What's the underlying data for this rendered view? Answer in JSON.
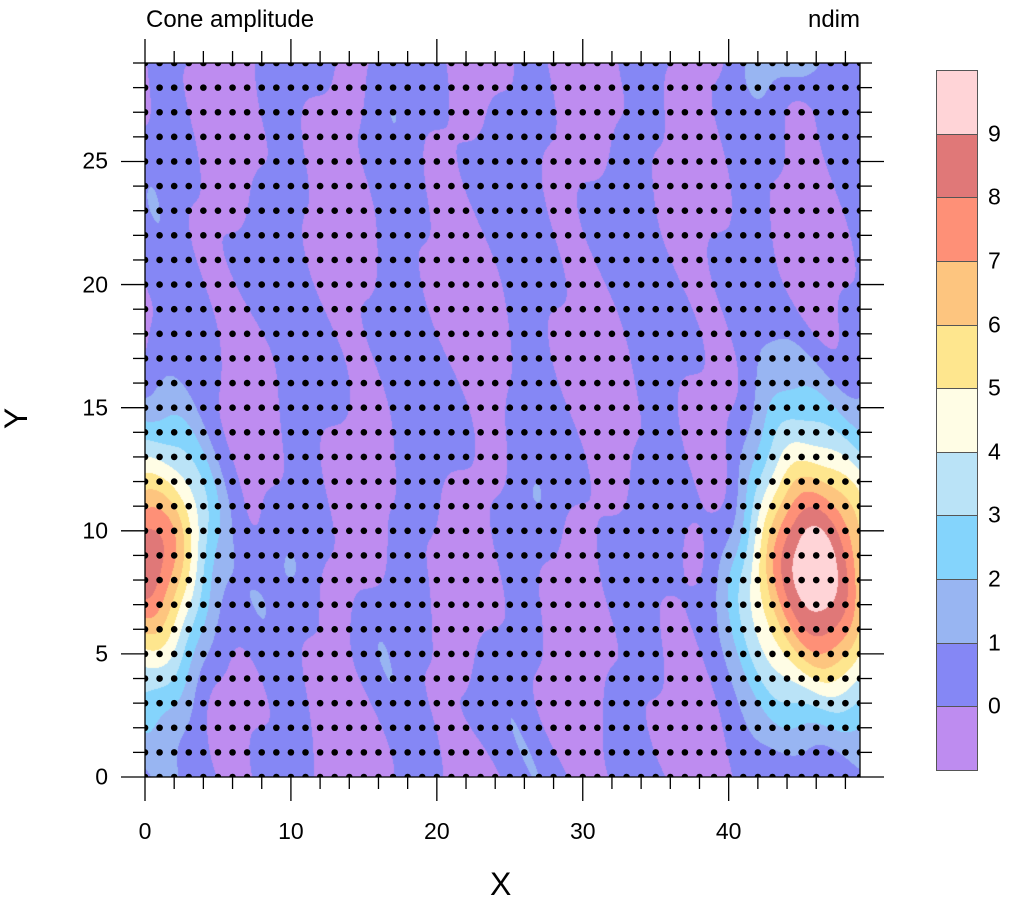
{
  "chart_data": {
    "type": "contour",
    "title_left": "Cone amplitude",
    "title_right": "ndim",
    "xlabel": "X",
    "ylabel": "Y",
    "xlim": [
      0,
      49
    ],
    "ylim": [
      0,
      29
    ],
    "xticks": [
      0,
      10,
      20,
      30,
      40
    ],
    "yticks": [
      0,
      5,
      10,
      15,
      20,
      25
    ],
    "x_minor_step": 2,
    "y_minor_step": 1,
    "grid_points": {
      "nx": 50,
      "ny": 30
    },
    "levels": [
      0,
      1,
      2,
      3,
      4,
      5,
      6,
      7,
      8,
      9
    ],
    "level_labels": [
      "0",
      "1",
      "2",
      "3",
      "4",
      "5",
      "6",
      "7",
      "8",
      "9"
    ],
    "colors": [
      "#BE8CF0",
      "#8587F5",
      "#98B5F2",
      "#84D4FC",
      "#BAE3F7",
      "#FFFDE5",
      "#FEE68E",
      "#FDC57F",
      "#FE9077",
      "#E07878",
      "#FFD4D7"
    ],
    "peaks": [
      {
        "x": 46,
        "y": 8.5,
        "amplitude": 10.6,
        "sigma_x": 3.0,
        "sigma_y": 3.7
      },
      {
        "x": -0.5,
        "y": 8.8,
        "amplitude": 8.6,
        "sigma_x": 3.2,
        "sigma_y": 3.5
      },
      {
        "x": 46,
        "y": 29.5,
        "amplitude": 1.6,
        "sigma_x": 2.5,
        "sigma_y": 1.0
      }
    ],
    "legend": "right"
  }
}
